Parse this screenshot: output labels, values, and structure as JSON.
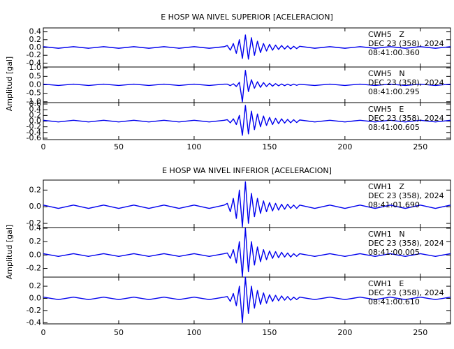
{
  "chart_data": [
    {
      "type": "line",
      "title": "E HOSP WA NIVEL SUPERIOR [ACELERACION]",
      "ylabel": "Amplitud [gal]",
      "color": "#0000ee",
      "xlim": [
        0,
        270
      ],
      "xticks": [
        0,
        50,
        100,
        150,
        200,
        250
      ],
      "x": [
        0,
        10,
        20,
        30,
        40,
        50,
        60,
        70,
        80,
        90,
        100,
        110,
        120,
        122,
        124,
        126,
        128,
        130,
        132,
        134,
        136,
        138,
        140,
        142,
        144,
        146,
        148,
        150,
        152,
        154,
        156,
        158,
        160,
        162,
        164,
        166,
        168,
        170,
        180,
        190,
        200,
        210,
        220,
        230,
        240,
        250,
        260,
        270
      ],
      "panels": [
        {
          "ylim": [
            -0.5,
            0.5
          ],
          "yticks": [
            0.4,
            0.2,
            {
              "value": 0,
              "label": "0.0"
            },
            -0.2,
            -0.4
          ],
          "annotations": [
            "CWH5   Z",
            "DEC 23 (358), 2024",
            "08:41:00.360"
          ],
          "values": [
            0.02,
            -0.02,
            0.02,
            -0.02,
            0.02,
            -0.02,
            0.02,
            -0.02,
            0.02,
            -0.02,
            0.02,
            -0.02,
            0.02,
            0.05,
            -0.07,
            0.1,
            -0.15,
            0.2,
            -0.28,
            0.32,
            -0.3,
            0.25,
            -0.2,
            0.16,
            -0.13,
            0.1,
            -0.09,
            0.08,
            -0.07,
            0.06,
            -0.05,
            0.05,
            -0.04,
            0.04,
            -0.04,
            0.03,
            -0.03,
            0.03,
            -0.02,
            0.02,
            -0.02,
            0.02,
            -0.02,
            0.02,
            -0.02,
            0.02,
            -0.02,
            0.02
          ]
        },
        {
          "ylim": [
            -1.05,
            1.05
          ],
          "yticks": [
            {
              "value": 1,
              "label": "1.0"
            },
            0.5,
            {
              "value": 0,
              "label": "0.0"
            },
            -0.5,
            {
              "value": -1,
              "label": "-1.0"
            }
          ],
          "annotations": [
            "CWH5   N",
            "DEC 23 (358), 2024",
            "08:41:00.295"
          ],
          "values": [
            0.04,
            -0.04,
            0.04,
            -0.04,
            0.04,
            -0.04,
            0.04,
            -0.04,
            0.04,
            -0.04,
            0.04,
            -0.04,
            0.04,
            0.04,
            -0.05,
            0.06,
            -0.1,
            0.15,
            -1.0,
            0.85,
            -0.4,
            0.3,
            -0.2,
            0.18,
            -0.15,
            0.13,
            -0.1,
            0.09,
            -0.08,
            0.07,
            -0.06,
            0.05,
            -0.05,
            0.04,
            -0.04,
            0.04,
            -0.03,
            0.03,
            -0.04,
            0.04,
            -0.04,
            0.04,
            -0.04,
            0.04,
            -0.04,
            0.04,
            -0.04,
            0.04
          ]
        },
        {
          "ylim": [
            -0.65,
            0.65
          ],
          "yticks": [
            0.6,
            0.4,
            0.2,
            {
              "value": 0,
              "label": "0.0"
            },
            -0.2,
            -0.4,
            -0.6
          ],
          "annotations": [
            "CWH5   E",
            "DEC 23 (358), 2024",
            "08:41:00.605"
          ],
          "values": [
            0.03,
            -0.03,
            0.03,
            -0.03,
            0.03,
            -0.03,
            0.03,
            -0.03,
            0.03,
            -0.03,
            0.03,
            -0.03,
            0.03,
            0.05,
            -0.06,
            0.08,
            -0.12,
            0.2,
            -0.5,
            0.55,
            -0.45,
            0.35,
            -0.3,
            0.25,
            -0.2,
            0.18,
            -0.15,
            0.13,
            -0.12,
            0.1,
            -0.09,
            0.08,
            -0.07,
            0.06,
            -0.06,
            0.05,
            -0.05,
            0.04,
            -0.03,
            0.03,
            -0.03,
            0.03,
            -0.03,
            0.03,
            -0.03,
            0.03,
            -0.03,
            0.03
          ]
        }
      ]
    },
    {
      "type": "line",
      "title": "E HOSP WA NIVEL INFERIOR [ACELERACION]",
      "ylabel": "Amplitud [gal]",
      "color": "#0000ee",
      "xlim": [
        0,
        270
      ],
      "xticks": [
        0,
        50,
        100,
        150,
        200,
        250
      ],
      "x": [
        0,
        10,
        20,
        30,
        40,
        50,
        60,
        70,
        80,
        90,
        100,
        110,
        120,
        122,
        124,
        126,
        128,
        130,
        132,
        134,
        136,
        138,
        140,
        142,
        144,
        146,
        148,
        150,
        152,
        154,
        156,
        158,
        160,
        162,
        164,
        166,
        168,
        170,
        180,
        190,
        200,
        210,
        220,
        230,
        240,
        250,
        260,
        270
      ],
      "panels": [
        {
          "ylim": [
            -0.25,
            0.32
          ],
          "yticks": [
            0.2,
            {
              "value": 0,
              "label": "0.0"
            },
            -0.2
          ],
          "annotations": [
            "CWH1   Z",
            "DEC 23 (358), 2024",
            "08:41:01.690"
          ],
          "values": [
            0.02,
            -0.02,
            0.02,
            -0.02,
            0.02,
            -0.02,
            0.02,
            -0.02,
            0.02,
            -0.02,
            0.02,
            -0.02,
            0.02,
            0.04,
            -0.06,
            0.1,
            -0.14,
            0.2,
            -0.24,
            0.3,
            -0.2,
            0.16,
            -0.12,
            0.1,
            -0.08,
            0.07,
            -0.06,
            0.05,
            -0.05,
            0.04,
            -0.04,
            0.03,
            -0.03,
            0.03,
            -0.02,
            0.02,
            -0.02,
            0.02,
            -0.02,
            0.02,
            -0.02,
            0.02,
            -0.02,
            0.02,
            -0.02,
            0.02,
            -0.02,
            0.02
          ]
        },
        {
          "ylim": [
            -0.33,
            0.41
          ],
          "yticks": [
            0.4,
            0.2,
            {
              "value": 0,
              "label": "0.0"
            },
            -0.2
          ],
          "annotations": [
            "CWH1   N",
            "DEC 23 (358), 2024",
            "08:41:00.005"
          ],
          "values": [
            0.02,
            -0.02,
            0.02,
            -0.02,
            0.02,
            -0.02,
            0.02,
            -0.02,
            0.02,
            -0.02,
            0.02,
            -0.02,
            0.02,
            0.03,
            -0.05,
            0.08,
            -0.12,
            0.2,
            -0.32,
            0.4,
            -0.25,
            0.2,
            -0.15,
            0.12,
            -0.1,
            0.08,
            -0.07,
            0.06,
            -0.05,
            0.05,
            -0.04,
            0.04,
            -0.03,
            0.03,
            -0.03,
            0.02,
            -0.02,
            0.02,
            -0.02,
            0.02,
            -0.02,
            0.02,
            -0.02,
            0.02,
            -0.02,
            0.02,
            -0.02,
            0.02
          ]
        },
        {
          "ylim": [
            -0.42,
            0.35
          ],
          "yticks": [
            0.2,
            {
              "value": 0,
              "label": "0.0"
            },
            -0.2,
            -0.4
          ],
          "annotations": [
            "CWH1   E",
            "DEC 23 (358), 2024",
            "08:41:00.610"
          ],
          "values": [
            0.02,
            -0.02,
            0.02,
            -0.02,
            0.02,
            -0.02,
            0.02,
            -0.02,
            0.02,
            -0.02,
            0.02,
            -0.02,
            0.02,
            0.03,
            -0.05,
            0.08,
            -0.12,
            0.2,
            -0.4,
            0.35,
            -0.25,
            0.2,
            -0.16,
            0.13,
            -0.1,
            0.09,
            -0.08,
            0.06,
            -0.05,
            0.05,
            -0.04,
            0.04,
            -0.03,
            0.03,
            -0.03,
            0.02,
            -0.02,
            0.02,
            -0.02,
            0.02,
            -0.02,
            0.02,
            -0.02,
            0.02,
            -0.02,
            0.02,
            -0.02,
            0.02
          ]
        }
      ]
    }
  ]
}
